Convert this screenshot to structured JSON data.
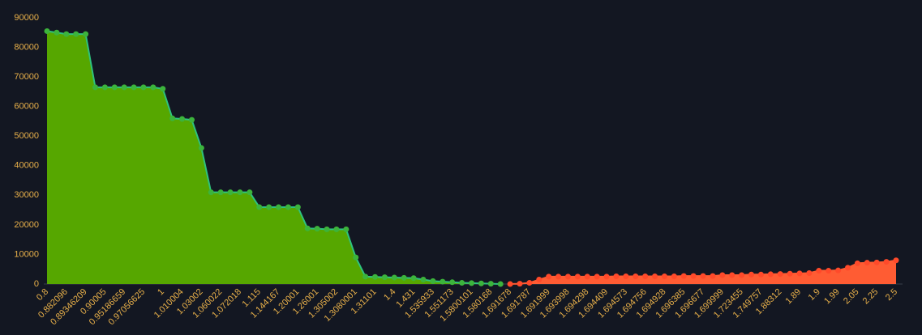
{
  "chart_data": {
    "type": "depth",
    "categories": [
      "0.8",
      null,
      "0.882096",
      null,
      "0.89346209",
      null,
      "0.90005",
      null,
      "0.95186659",
      null,
      "0.97056625",
      null,
      "1",
      null,
      "1.010004",
      null,
      "1.03002",
      null,
      "1.060022",
      null,
      "1.072018",
      null,
      "1.115",
      null,
      "1.144167",
      null,
      "1.20001",
      null,
      "1.26001",
      null,
      "1.305002",
      null,
      "1.3080001",
      null,
      "1.31101",
      null,
      "1.4",
      null,
      "1.431",
      null,
      "1.535933",
      null,
      "1.551173",
      null,
      "1.5800101",
      null,
      "1.580168",
      null,
      "1.691678",
      null,
      "1.691787",
      null,
      "1.691999",
      null,
      "1.693998",
      null,
      "1.694298",
      null,
      "1.694409",
      null,
      "1.694573",
      null,
      "1.694756",
      null,
      "1.694928",
      null,
      "1.696385",
      null,
      "1.696677",
      null,
      "1.699999",
      null,
      "1.723455",
      null,
      "1.749757",
      null,
      "1.88312",
      null,
      "1.89",
      null,
      "1.9",
      null,
      "1.99",
      null,
      "2.05",
      null,
      "2.25",
      null,
      "2.5"
    ],
    "series": [
      {
        "color": "#56a700",
        "values": [
          85500,
          85000,
          84500,
          84500,
          84500,
          66500,
          66500,
          66500,
          66500,
          66500,
          66500,
          66500,
          66000,
          56000,
          55800,
          55500,
          46000,
          31000,
          31000,
          31000,
          31000,
          31000,
          26000,
          26000,
          26000,
          26000,
          26000,
          18800,
          18700,
          18500,
          18500,
          18500,
          9000,
          2500,
          2400,
          2300,
          2200,
          2100,
          2000,
          1500,
          1000,
          800,
          600,
          400,
          300,
          200,
          100,
          0,
          null,
          null,
          null,
          null,
          null,
          null,
          null,
          null,
          null,
          null,
          null,
          null,
          null,
          null,
          null,
          null,
          null,
          null,
          null,
          null,
          null,
          null,
          null,
          null,
          null,
          null,
          null,
          null,
          null,
          null,
          null,
          null,
          null,
          null,
          null,
          null,
          null,
          null,
          null,
          null,
          null
        ]
      },
      {
        "color": "#ff5c33",
        "values": [
          null,
          null,
          null,
          null,
          null,
          null,
          null,
          null,
          null,
          null,
          null,
          null,
          null,
          null,
          null,
          null,
          null,
          null,
          null,
          null,
          null,
          null,
          null,
          null,
          null,
          null,
          null,
          null,
          null,
          null,
          null,
          null,
          null,
          null,
          null,
          null,
          null,
          null,
          null,
          null,
          null,
          null,
          null,
          null,
          null,
          null,
          null,
          null,
          0,
          100,
          400,
          1500,
          2500,
          2500,
          2500,
          2500,
          2500,
          2500,
          2500,
          2600,
          2600,
          2600,
          2600,
          2600,
          2600,
          2600,
          2700,
          2700,
          2700,
          2700,
          3000,
          3000,
          3000,
          3200,
          3200,
          3300,
          3400,
          3500,
          3600,
          3700,
          4500,
          4500,
          4600,
          5500,
          7000,
          7200,
          7300,
          7500,
          8000
        ]
      }
    ],
    "ylim": [
      0,
      90000
    ],
    "yticks": [
      0,
      10000,
      20000,
      30000,
      40000,
      50000,
      60000,
      70000,
      80000,
      90000
    ]
  }
}
